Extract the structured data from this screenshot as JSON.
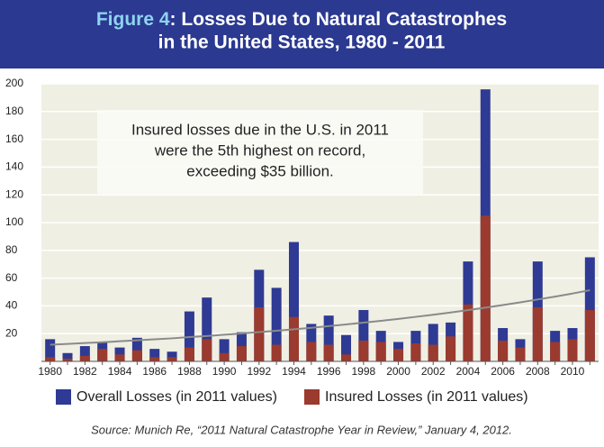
{
  "chart_data": {
    "type": "bar",
    "title_prefix": "Figure 4",
    "title_lines": [
      ": Losses Due to Natural Catastrophes",
      "in the United States, 1980 - 2011"
    ],
    "annotation_lines": [
      "Insured losses due in the U.S. in 2011",
      "were the 5th highest on record,",
      "exceeding $35 billion."
    ],
    "source": "Source: Munich Re, “2011 Natural Catastrophe Year in Review,” January 4, 2012.",
    "categories": [
      "1980",
      null,
      "1982",
      null,
      "1984",
      null,
      "1986",
      null,
      "1988",
      null,
      "1990",
      null,
      "1992",
      null,
      "1994",
      null,
      "1996",
      null,
      "1998",
      null,
      "2000",
      null,
      "2002",
      null,
      "2004",
      null,
      "2006",
      null,
      "2008",
      null,
      "2010",
      null
    ],
    "series": [
      {
        "name": "Overall Losses (in 2011 values)",
        "color": "#2e3a93",
        "values": [
          16,
          6,
          11,
          14,
          10,
          17,
          9,
          7,
          36,
          46,
          16,
          21,
          66,
          53,
          86,
          27,
          33,
          19,
          37,
          22,
          14,
          22,
          27,
          28,
          72,
          196,
          24,
          16,
          72,
          22,
          24,
          75
        ]
      },
      {
        "name": "Insured Losses (in 2011 values)",
        "color": "#9b3a2e",
        "values": [
          3,
          2,
          4,
          9,
          5,
          8,
          3,
          3,
          10,
          16,
          6,
          11,
          39,
          12,
          32,
          14,
          12,
          5,
          15,
          14,
          9,
          13,
          12,
          18,
          41,
          105,
          15,
          10,
          39,
          14,
          16,
          37
        ]
      }
    ],
    "trend": {
      "color": "#8a8a8a",
      "values": [
        12,
        12.6,
        13.2,
        13.8,
        14.5,
        15.2,
        15.9,
        16.6,
        17.5,
        18.3,
        19.2,
        20.1,
        21.1,
        22.1,
        23.1,
        24.2,
        25.4,
        26.6,
        27.9,
        29.2,
        30.6,
        32.1,
        33.6,
        35.2,
        36.9,
        38.7,
        40.6,
        42.5,
        44.6,
        46.7,
        48.9,
        51.3
      ]
    },
    "ylim": [
      0,
      200
    ],
    "yticks": [
      20,
      40,
      60,
      80,
      100,
      120,
      140,
      160,
      180,
      200
    ],
    "grid": true
  }
}
